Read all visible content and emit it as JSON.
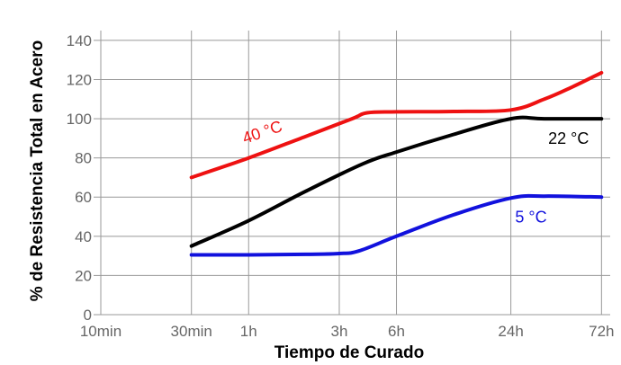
{
  "chart_data": {
    "type": "line",
    "xlabel": "Tiempo de Curado",
    "ylabel": "% de Resistencia Total en Acero",
    "x_scale": "log",
    "x_ticks": [
      {
        "label": "10min",
        "hours": 0.1667
      },
      {
        "label": "30min",
        "hours": 0.5
      },
      {
        "label": "1h",
        "hours": 1
      },
      {
        "label": "3h",
        "hours": 3
      },
      {
        "label": "6h",
        "hours": 6
      },
      {
        "label": "24h",
        "hours": 24
      },
      {
        "label": "72h",
        "hours": 72
      }
    ],
    "xlim_hours": [
      0.1667,
      80
    ],
    "ylim": [
      0,
      145
    ],
    "y_ticks": [
      0,
      20,
      40,
      60,
      80,
      100,
      120,
      140
    ],
    "grid": true,
    "series": [
      {
        "name": "40 °C",
        "color": "#ee1111",
        "points": [
          [
            0.5,
            70
          ],
          [
            1,
            80
          ],
          [
            2,
            91
          ],
          [
            3.5,
            100
          ],
          [
            4.2,
            103
          ],
          [
            6,
            103.5
          ],
          [
            12,
            103.7
          ],
          [
            24,
            104.5
          ],
          [
            36,
            110
          ],
          [
            50,
            116
          ],
          [
            72,
            123.5
          ]
        ]
      },
      {
        "name": "22 °C",
        "color": "#000000",
        "points": [
          [
            0.5,
            35
          ],
          [
            1,
            48
          ],
          [
            2,
            63
          ],
          [
            4,
            77
          ],
          [
            6,
            83
          ],
          [
            12,
            92
          ],
          [
            24,
            100
          ],
          [
            36,
            100
          ],
          [
            72,
            100
          ]
        ]
      },
      {
        "name": "5 °C",
        "color": "#1111dd",
        "points": [
          [
            0.5,
            30.5
          ],
          [
            1,
            30.5
          ],
          [
            2,
            30.8
          ],
          [
            3,
            31.2
          ],
          [
            3.8,
            32.5
          ],
          [
            6,
            40
          ],
          [
            12,
            51
          ],
          [
            24,
            59.5
          ],
          [
            36,
            60.5
          ],
          [
            72,
            60
          ]
        ]
      }
    ]
  }
}
